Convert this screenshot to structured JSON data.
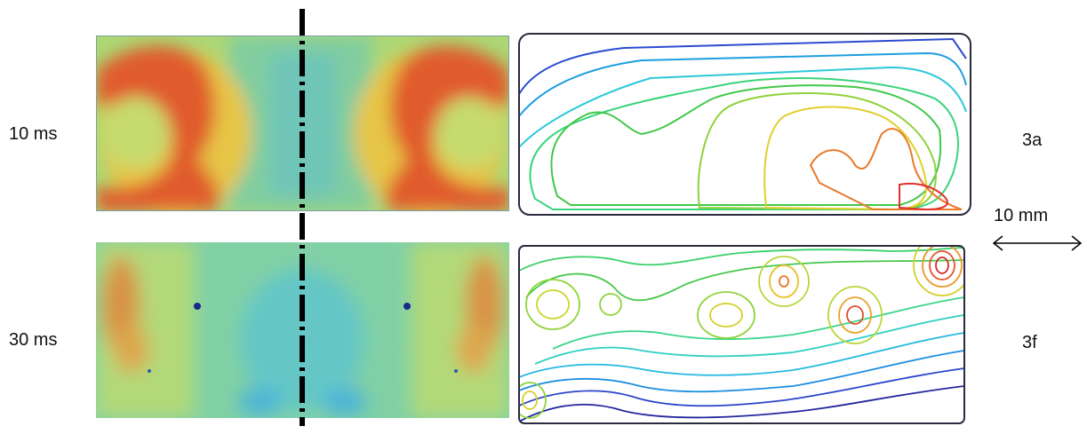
{
  "rows": [
    {
      "time_label": "10 ms",
      "panel_id": "3a"
    },
    {
      "time_label": "30 ms",
      "panel_id": "3f"
    }
  ],
  "scale_bar": {
    "label": "10 mm"
  },
  "colors": {
    "hot": "#e8461a",
    "warm": "#f2d83a",
    "cool": "#62d2c6",
    "cold": "#2b3fb0",
    "axis": "#000000"
  }
}
